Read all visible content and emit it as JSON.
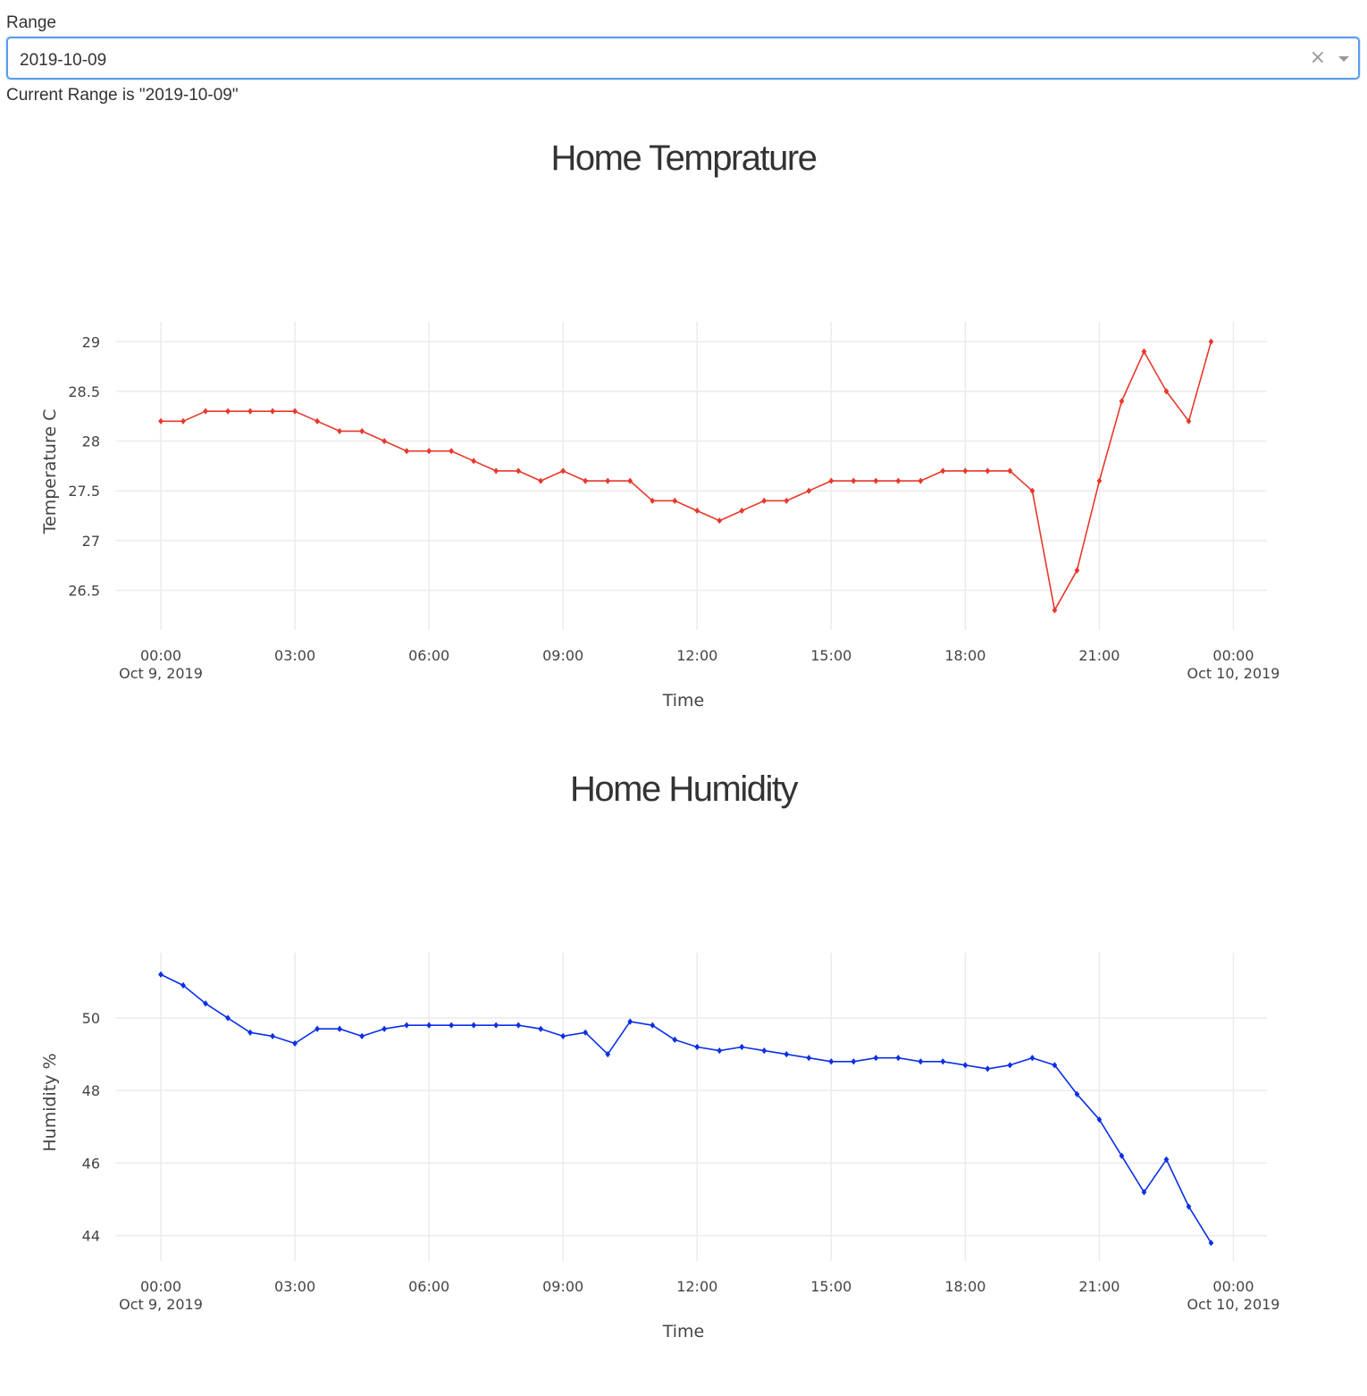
{
  "dropdown": {
    "label": "Range",
    "value": "2019-10-09",
    "clear_icon": "close-icon",
    "arrow_icon": "caret-down-icon",
    "status_text": "Current Range is \"2019-10-09\""
  },
  "chart_data": [
    {
      "type": "line",
      "title": "Home Temprature",
      "xlabel": "Time",
      "ylabel": "Temperature C",
      "color": "#e8382b",
      "x_range": [
        "2019-10-08T23:00",
        "2019-10-10T00:45"
      ],
      "ylim": [
        26.1,
        29.2
      ],
      "yticks": [
        26.5,
        27,
        27.5,
        28,
        28.5,
        29
      ],
      "ytick_labels": [
        "26.5",
        "27",
        "27.5",
        "28",
        "28.5",
        "29"
      ],
      "xticks": [
        "2019-10-09T00:00",
        "2019-10-09T03:00",
        "2019-10-09T06:00",
        "2019-10-09T09:00",
        "2019-10-09T12:00",
        "2019-10-09T15:00",
        "2019-10-09T18:00",
        "2019-10-09T21:00",
        "2019-10-10T00:00"
      ],
      "xtick_labels": [
        "00:00",
        "03:00",
        "06:00",
        "09:00",
        "12:00",
        "15:00",
        "18:00",
        "21:00",
        "00:00"
      ],
      "xtick_sublabels": [
        "Oct 9, 2019",
        "",
        "",
        "",
        "",
        "",
        "",
        "",
        "Oct 10, 2019"
      ],
      "grid": true,
      "series": [
        {
          "x": [
            "2019-10-09T00:00",
            "2019-10-09T00:30",
            "2019-10-09T01:00",
            "2019-10-09T01:30",
            "2019-10-09T02:00",
            "2019-10-09T02:30",
            "2019-10-09T03:00",
            "2019-10-09T03:30",
            "2019-10-09T04:00",
            "2019-10-09T04:30",
            "2019-10-09T05:00",
            "2019-10-09T05:30",
            "2019-10-09T06:00",
            "2019-10-09T06:30",
            "2019-10-09T07:00",
            "2019-10-09T07:30",
            "2019-10-09T08:00",
            "2019-10-09T08:30",
            "2019-10-09T09:00",
            "2019-10-09T09:30",
            "2019-10-09T10:00",
            "2019-10-09T10:30",
            "2019-10-09T11:00",
            "2019-10-09T11:30",
            "2019-10-09T12:00",
            "2019-10-09T12:30",
            "2019-10-09T13:00",
            "2019-10-09T13:30",
            "2019-10-09T14:00",
            "2019-10-09T14:30",
            "2019-10-09T15:00",
            "2019-10-09T15:30",
            "2019-10-09T16:00",
            "2019-10-09T16:30",
            "2019-10-09T17:00",
            "2019-10-09T17:30",
            "2019-10-09T18:00",
            "2019-10-09T18:30",
            "2019-10-09T19:00",
            "2019-10-09T19:30",
            "2019-10-09T20:00",
            "2019-10-09T20:30",
            "2019-10-09T21:00",
            "2019-10-09T21:30",
            "2019-10-09T22:00",
            "2019-10-09T22:30",
            "2019-10-09T23:00",
            "2019-10-09T23:30"
          ],
          "y": [
            28.2,
            28.2,
            28.3,
            28.3,
            28.3,
            28.3,
            28.3,
            28.2,
            28.1,
            28.1,
            28.0,
            27.9,
            27.9,
            27.9,
            27.8,
            27.7,
            27.7,
            27.6,
            27.7,
            27.6,
            27.6,
            27.6,
            27.4,
            27.4,
            27.3,
            27.2,
            27.3,
            27.4,
            27.4,
            27.5,
            27.6,
            27.6,
            27.6,
            27.6,
            27.6,
            27.7,
            27.7,
            27.7,
            27.7,
            27.5,
            26.3,
            26.7,
            27.6,
            28.4,
            28.9,
            28.5,
            28.2,
            29.0
          ]
        }
      ]
    },
    {
      "type": "line",
      "title": "Home Humidity",
      "xlabel": "Time",
      "ylabel": "Humidity %",
      "color": "#0a2fe8",
      "x_range": [
        "2019-10-08T23:00",
        "2019-10-10T00:45"
      ],
      "ylim": [
        43.3,
        51.8
      ],
      "yticks": [
        44,
        46,
        48,
        50
      ],
      "ytick_labels": [
        "44",
        "46",
        "48",
        "50"
      ],
      "xticks": [
        "2019-10-09T00:00",
        "2019-10-09T03:00",
        "2019-10-09T06:00",
        "2019-10-09T09:00",
        "2019-10-09T12:00",
        "2019-10-09T15:00",
        "2019-10-09T18:00",
        "2019-10-09T21:00",
        "2019-10-10T00:00"
      ],
      "xtick_labels": [
        "00:00",
        "03:00",
        "06:00",
        "09:00",
        "12:00",
        "15:00",
        "18:00",
        "21:00",
        "00:00"
      ],
      "xtick_sublabels": [
        "Oct 9, 2019",
        "",
        "",
        "",
        "",
        "",
        "",
        "",
        "Oct 10, 2019"
      ],
      "grid": true,
      "series": [
        {
          "x": [
            "2019-10-09T00:00",
            "2019-10-09T00:30",
            "2019-10-09T01:00",
            "2019-10-09T01:30",
            "2019-10-09T02:00",
            "2019-10-09T02:30",
            "2019-10-09T03:00",
            "2019-10-09T03:30",
            "2019-10-09T04:00",
            "2019-10-09T04:30",
            "2019-10-09T05:00",
            "2019-10-09T05:30",
            "2019-10-09T06:00",
            "2019-10-09T06:30",
            "2019-10-09T07:00",
            "2019-10-09T07:30",
            "2019-10-09T08:00",
            "2019-10-09T08:30",
            "2019-10-09T09:00",
            "2019-10-09T09:30",
            "2019-10-09T10:00",
            "2019-10-09T10:30",
            "2019-10-09T11:00",
            "2019-10-09T11:30",
            "2019-10-09T12:00",
            "2019-10-09T12:30",
            "2019-10-09T13:00",
            "2019-10-09T13:30",
            "2019-10-09T14:00",
            "2019-10-09T14:30",
            "2019-10-09T15:00",
            "2019-10-09T15:30",
            "2019-10-09T16:00",
            "2019-10-09T16:30",
            "2019-10-09T17:00",
            "2019-10-09T17:30",
            "2019-10-09T18:00",
            "2019-10-09T18:30",
            "2019-10-09T19:00",
            "2019-10-09T19:30",
            "2019-10-09T20:00",
            "2019-10-09T20:30",
            "2019-10-09T21:00",
            "2019-10-09T21:30",
            "2019-10-09T22:00",
            "2019-10-09T22:30",
            "2019-10-09T23:00",
            "2019-10-09T23:30"
          ],
          "y": [
            51.2,
            50.9,
            50.4,
            50.0,
            49.6,
            49.5,
            49.3,
            49.7,
            49.7,
            49.5,
            49.7,
            49.8,
            49.8,
            49.8,
            49.8,
            49.8,
            49.8,
            49.7,
            49.5,
            49.6,
            49.0,
            49.9,
            49.8,
            49.4,
            49.2,
            49.1,
            49.2,
            49.1,
            49.0,
            48.9,
            48.8,
            48.8,
            48.9,
            48.9,
            48.8,
            48.8,
            48.7,
            48.6,
            48.7,
            48.9,
            48.7,
            47.9,
            47.2,
            46.2,
            45.2,
            46.1,
            44.8,
            43.8
          ]
        }
      ]
    }
  ]
}
